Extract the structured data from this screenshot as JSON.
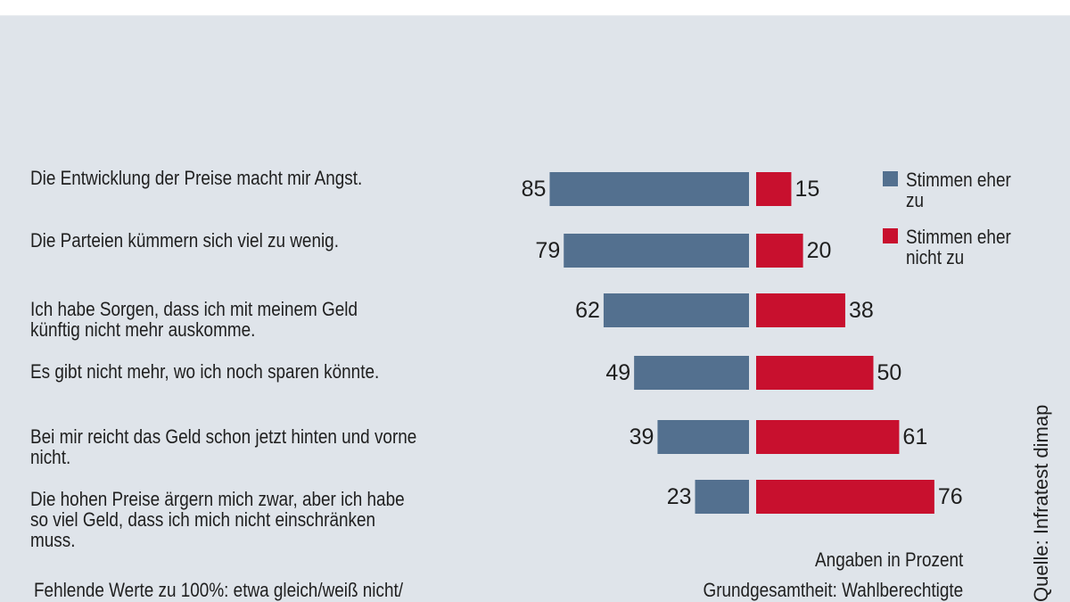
{
  "chart_data": {
    "type": "bar",
    "orientation": "horizontal-diverging",
    "categories": [
      "Die Entwicklung der Preise macht mir Angst.",
      "Die Parteien kümmern sich viel zu wenig.",
      "Ich habe Sorgen, dass ich mit meinem Geld\nkünftig nicht mehr auskomme.",
      "Es gibt nicht mehr, wo ich noch sparen könnte.",
      "Bei mir reicht das Geld schon jetzt hinten und vorne\nnicht.",
      "Die hohen Preise ärgern mich zwar, aber ich habe\nso viel Geld, dass ich mich nicht einschränken\nmuss."
    ],
    "series": [
      {
        "name": "Stimmen eher zu",
        "color": "#53708f",
        "values": [
          85,
          79,
          62,
          49,
          39,
          23
        ]
      },
      {
        "name": "Stimmen eher nicht zu",
        "color": "#c8102e",
        "values": [
          15,
          20,
          38,
          50,
          61,
          76
        ]
      }
    ],
    "legend": {
      "position": "right",
      "items": [
        "Stimmen eher\nzu",
        "Stimmen eher\nnicht zu"
      ]
    },
    "unit_note": "Angaben in Prozent",
    "base_note": "Grundgesamtheit: Wahlberechtigte",
    "missing_note": "Fehlende Werte zu 100%: etwa gleich/weiß nicht/",
    "source": "Quelle: Infratest dimap",
    "grid": false
  }
}
